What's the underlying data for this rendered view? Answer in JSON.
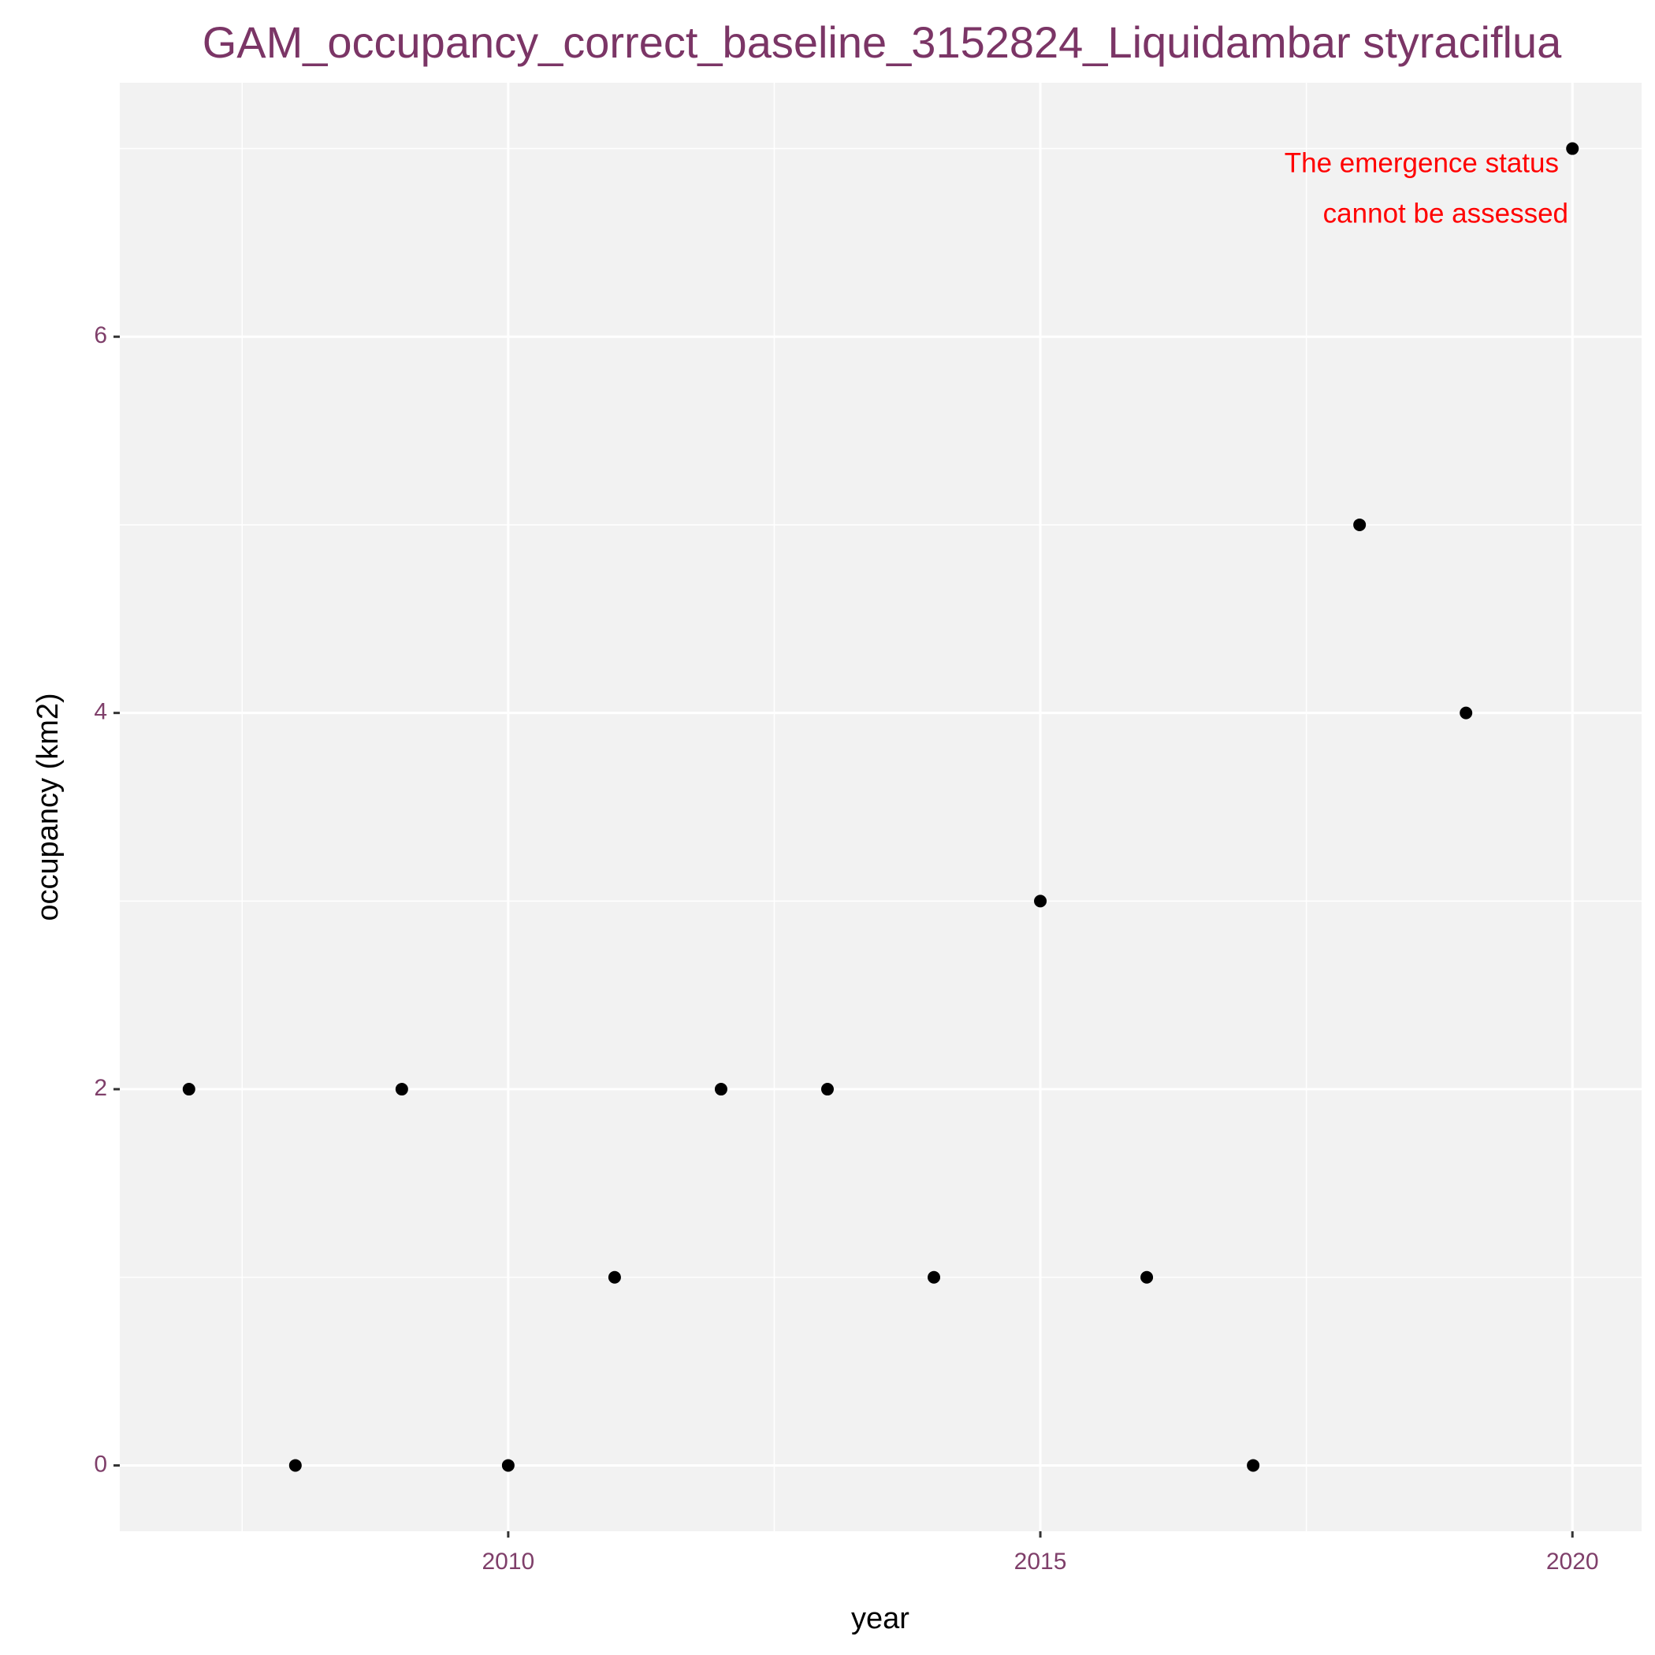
{
  "chart_data": {
    "type": "scatter",
    "title": "GAM_occupancy_correct_baseline_3152824_Liquidambar styraciflua",
    "x_label": "year",
    "y_label": "occupancy (km2)",
    "annotation": [
      "The emergence status",
      "cannot be assessed"
    ],
    "x": [
      2007,
      2008,
      2009,
      2010,
      2011,
      2012,
      2013,
      2014,
      2015,
      2016,
      2017,
      2018,
      2019,
      2020
    ],
    "values": [
      2,
      0,
      2,
      0,
      1,
      2,
      2,
      1,
      3,
      1,
      0,
      5,
      4,
      7
    ],
    "color": "#000000",
    "xlim": [
      2006.35,
      2020.65
    ],
    "ylim": [
      -0.35,
      7.35
    ],
    "xticks": [
      2010,
      2015,
      2020
    ],
    "yticks": [
      0,
      2,
      4,
      6
    ],
    "grid": true
  }
}
